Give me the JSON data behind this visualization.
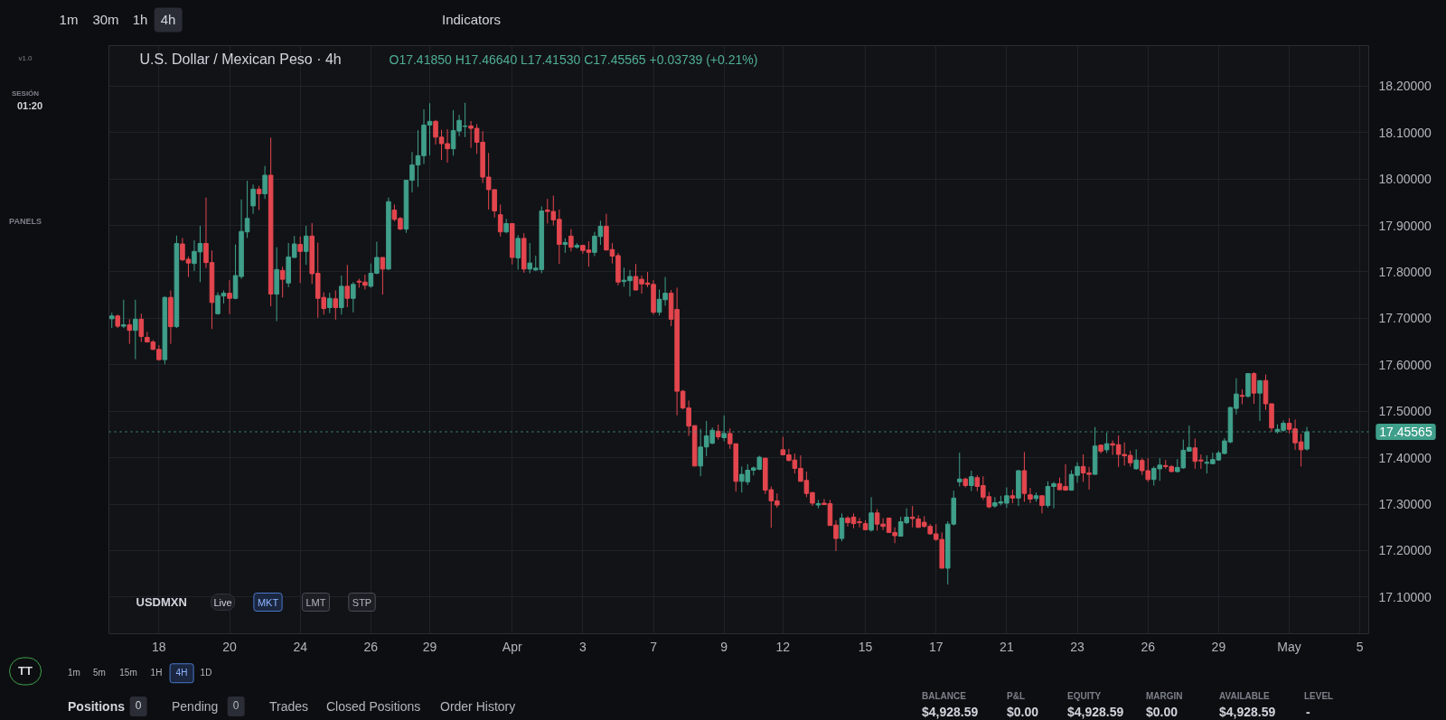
{
  "chart_data": {
    "type": "candlestick",
    "title": "U.S. Dollar / Mexican Peso · 4h",
    "subtitle": "O17.41850 H17.46640 L17.41530 C17.45565 +0.03739 (+0.21%)",
    "categories": [
      null,
      null,
      null,
      null,
      null,
      null,
      null,
      null,
      "18",
      null,
      null,
      null,
      null,
      null,
      null,
      null,
      null,
      null,
      null,
      null,
      "20",
      null,
      null,
      null,
      null,
      null,
      null,
      null,
      null,
      null,
      null,
      null,
      "24",
      null,
      null,
      null,
      null,
      null,
      null,
      null,
      null,
      null,
      null,
      null,
      "26",
      null,
      null,
      null,
      null,
      null,
      null,
      null,
      null,
      null,
      "29",
      null,
      null,
      null,
      null,
      null,
      null,
      null,
      null,
      null,
      null,
      null,
      null,
      null,
      "Apr",
      null,
      null,
      null,
      null,
      null,
      null,
      null,
      null,
      null,
      null,
      null,
      "3",
      null,
      null,
      null,
      null,
      null,
      null,
      null,
      null,
      null,
      null,
      null,
      "7",
      null,
      null,
      null,
      null,
      null,
      null,
      null,
      null,
      null,
      null,
      null,
      "9",
      null,
      null,
      null,
      null,
      null,
      null,
      null,
      null,
      null,
      "12",
      null,
      null,
      null,
      null,
      null,
      null,
      null,
      null,
      null,
      null,
      null,
      null,
      null,
      "15",
      null,
      null,
      null,
      null,
      null,
      null,
      null,
      null,
      null,
      null,
      null,
      "17",
      null,
      null,
      null,
      null,
      null,
      null,
      null,
      null,
      null,
      null,
      null,
      "21",
      null,
      null,
      null,
      null,
      null,
      null,
      null,
      null,
      null,
      null,
      null,
      "23",
      null,
      null,
      null,
      null,
      null,
      null,
      null,
      null,
      null,
      null,
      null,
      "26",
      null,
      null,
      null,
      null,
      null,
      null,
      null,
      null,
      null,
      null,
      null,
      "29",
      null,
      null,
      null,
      null,
      null,
      null,
      null,
      null,
      null,
      null,
      null,
      "May",
      null,
      null,
      null,
      null,
      null,
      null,
      null,
      null,
      null,
      null,
      null,
      "5",
      null
    ],
    "ohlc": [
      [
        17.699,
        17.712,
        17.679,
        17.705
      ],
      [
        17.705,
        17.708,
        17.679,
        17.683
      ],
      [
        17.683,
        17.74,
        17.679,
        17.686
      ],
      [
        17.686,
        17.698,
        17.645,
        17.674
      ],
      [
        17.674,
        17.74,
        17.612,
        17.698
      ],
      [
        17.698,
        17.71,
        17.649,
        17.661
      ],
      [
        17.659,
        17.671,
        17.648,
        17.649
      ],
      [
        17.649,
        17.653,
        17.632,
        17.633
      ],
      [
        17.633,
        17.642,
        17.609,
        17.611
      ],
      [
        17.611,
        17.747,
        17.601,
        17.745
      ],
      [
        17.745,
        17.76,
        17.645,
        17.682
      ],
      [
        17.682,
        17.878,
        17.679,
        17.861
      ],
      [
        17.86,
        17.873,
        17.823,
        17.826
      ],
      [
        17.827,
        17.833,
        17.789,
        17.819
      ],
      [
        17.818,
        17.868,
        17.802,
        17.844
      ],
      [
        17.843,
        17.899,
        17.778,
        17.861
      ],
      [
        17.861,
        17.96,
        17.808,
        17.82
      ],
      [
        17.82,
        17.846,
        17.677,
        17.734
      ],
      [
        17.71,
        17.756,
        17.708,
        17.749
      ],
      [
        17.748,
        17.76,
        17.732,
        17.754
      ],
      [
        17.754,
        17.782,
        17.709,
        17.743
      ],
      [
        17.743,
        17.859,
        17.741,
        17.792
      ],
      [
        17.79,
        17.956,
        17.785,
        17.887
      ],
      [
        17.886,
        17.996,
        17.873,
        17.915
      ],
      [
        17.942,
        17.988,
        17.925,
        17.978
      ],
      [
        17.978,
        17.985,
        17.933,
        17.968
      ],
      [
        17.968,
        18.028,
        17.957,
        18.008
      ],
      [
        18.008,
        18.089,
        17.726,
        17.752
      ],
      [
        17.752,
        17.853,
        17.694,
        17.805
      ],
      [
        17.803,
        17.811,
        17.745,
        17.784
      ],
      [
        17.776,
        17.862,
        17.767,
        17.832
      ],
      [
        17.831,
        17.877,
        17.83,
        17.86
      ],
      [
        17.859,
        17.876,
        17.776,
        17.844
      ],
      [
        17.844,
        17.899,
        17.815,
        17.877
      ],
      [
        17.877,
        17.905,
        17.774,
        17.796
      ],
      [
        17.797,
        17.863,
        17.701,
        17.743
      ],
      [
        17.745,
        17.756,
        17.708,
        17.721
      ],
      [
        17.723,
        17.755,
        17.711,
        17.743
      ],
      [
        17.742,
        17.76,
        17.697,
        17.723
      ],
      [
        17.723,
        17.792,
        17.708,
        17.769
      ],
      [
        17.769,
        17.815,
        17.724,
        17.743
      ],
      [
        17.743,
        17.778,
        17.713,
        17.773
      ],
      [
        17.78,
        17.785,
        17.766,
        17.778
      ],
      [
        17.778,
        17.794,
        17.762,
        17.771
      ],
      [
        17.769,
        17.818,
        17.766,
        17.797
      ],
      [
        17.797,
        17.865,
        17.795,
        17.831
      ],
      [
        17.831,
        17.831,
        17.751,
        17.806
      ],
      [
        17.806,
        17.96,
        17.804,
        17.951
      ],
      [
        17.933,
        17.945,
        17.909,
        17.913
      ],
      [
        17.915,
        17.918,
        17.89,
        17.892
      ],
      [
        17.892,
        17.997,
        17.884,
        17.997
      ],
      [
        17.997,
        18.058,
        17.971,
        18.03
      ],
      [
        18.03,
        18.105,
        17.983,
        18.05
      ],
      [
        18.05,
        18.15,
        18.032,
        18.116
      ],
      [
        18.116,
        18.163,
        18.051,
        18.124
      ],
      [
        18.124,
        18.127,
        18.074,
        18.09
      ],
      [
        18.09,
        18.106,
        18.041,
        18.076
      ],
      [
        18.076,
        18.107,
        18.035,
        18.065
      ],
      [
        18.065,
        18.148,
        18.05,
        18.104
      ],
      [
        18.103,
        18.138,
        18.092,
        18.126
      ],
      [
        18.113,
        18.164,
        18.09,
        18.114
      ],
      [
        18.114,
        18.125,
        18.067,
        18.109
      ],
      [
        18.109,
        18.118,
        18.054,
        18.079
      ],
      [
        18.079,
        18.103,
        17.991,
        18.004
      ],
      [
        18.004,
        18.056,
        17.934,
        17.977
      ],
      [
        17.977,
        17.977,
        17.917,
        17.931
      ],
      [
        17.923,
        17.945,
        17.876,
        17.886
      ],
      [
        17.886,
        17.914,
        17.883,
        17.904
      ],
      [
        17.904,
        17.904,
        17.816,
        17.831
      ],
      [
        17.83,
        17.879,
        17.805,
        17.872
      ],
      [
        17.872,
        17.883,
        17.798,
        17.806
      ],
      [
        17.806,
        17.862,
        17.797,
        17.819
      ],
      [
        17.804,
        17.835,
        17.802,
        17.808
      ],
      [
        17.805,
        17.941,
        17.797,
        17.931
      ],
      [
        17.933,
        17.957,
        17.904,
        17.93
      ],
      [
        17.93,
        17.964,
        17.9,
        17.912
      ],
      [
        17.913,
        17.934,
        17.817,
        17.859
      ],
      [
        17.859,
        17.872,
        17.841,
        17.863
      ],
      [
        17.877,
        17.892,
        17.844,
        17.853
      ],
      [
        17.853,
        17.862,
        17.85,
        17.857
      ],
      [
        17.857,
        17.857,
        17.839,
        17.846
      ],
      [
        17.847,
        17.866,
        17.811,
        17.842
      ],
      [
        17.842,
        17.886,
        17.834,
        17.877
      ],
      [
        17.876,
        17.91,
        17.858,
        17.898
      ],
      [
        17.898,
        17.925,
        17.846,
        17.847
      ],
      [
        17.848,
        17.862,
        17.818,
        17.834
      ],
      [
        17.835,
        17.841,
        17.771,
        17.778
      ],
      [
        17.779,
        17.809,
        17.768,
        17.782
      ],
      [
        17.781,
        17.804,
        17.747,
        17.79
      ],
      [
        17.79,
        17.817,
        17.76,
        17.761
      ],
      [
        17.784,
        17.792,
        17.753,
        17.774
      ],
      [
        17.776,
        17.8,
        17.767,
        17.773
      ],
      [
        17.773,
        17.782,
        17.708,
        17.713
      ],
      [
        17.713,
        17.762,
        17.706,
        17.741
      ],
      [
        17.74,
        17.789,
        17.727,
        17.754
      ],
      [
        17.754,
        17.761,
        17.683,
        17.698
      ],
      [
        17.719,
        17.766,
        17.491,
        17.543
      ],
      [
        17.543,
        17.546,
        17.504,
        17.507
      ],
      [
        17.507,
        17.523,
        17.447,
        17.468
      ],
      [
        17.469,
        17.469,
        17.382,
        17.382
      ],
      [
        17.382,
        17.462,
        17.36,
        17.423
      ],
      [
        17.423,
        17.479,
        17.403,
        17.447
      ],
      [
        17.431,
        17.465,
        17.429,
        17.459
      ],
      [
        17.457,
        17.471,
        17.439,
        17.445
      ],
      [
        17.443,
        17.491,
        17.435,
        17.452
      ],
      [
        17.452,
        17.463,
        17.419,
        17.43
      ],
      [
        17.43,
        17.43,
        17.327,
        17.349
      ],
      [
        17.349,
        17.381,
        17.325,
        17.364
      ],
      [
        17.348,
        17.386,
        17.341,
        17.373
      ],
      [
        17.373,
        17.381,
        17.362,
        17.378
      ],
      [
        17.375,
        17.404,
        17.373,
        17.401
      ],
      [
        17.399,
        17.399,
        17.322,
        17.33
      ],
      [
        17.331,
        17.338,
        17.249,
        17.307
      ],
      [
        17.307,
        17.323,
        17.292,
        17.298
      ],
      [
        17.417,
        17.445,
        17.406,
        17.406
      ],
      [
        17.406,
        17.419,
        17.392,
        17.394
      ],
      [
        17.395,
        17.409,
        17.366,
        17.377
      ],
      [
        17.377,
        17.405,
        17.349,
        17.349
      ],
      [
        17.351,
        17.37,
        17.315,
        17.323
      ],
      [
        17.325,
        17.325,
        17.296,
        17.302
      ],
      [
        17.298,
        17.309,
        17.291,
        17.301
      ],
      [
        17.302,
        17.311,
        17.298,
        17.299
      ],
      [
        17.301,
        17.309,
        17.254,
        17.254
      ],
      [
        17.255,
        17.265,
        17.199,
        17.226
      ],
      [
        17.226,
        17.28,
        17.22,
        17.27
      ],
      [
        17.27,
        17.274,
        17.252,
        17.26
      ],
      [
        17.272,
        17.28,
        17.248,
        17.258
      ],
      [
        17.262,
        17.27,
        17.25,
        17.26
      ],
      [
        17.258,
        17.265,
        17.244,
        17.245
      ],
      [
        17.244,
        17.315,
        17.241,
        17.281
      ],
      [
        17.281,
        17.289,
        17.243,
        17.257
      ],
      [
        17.257,
        17.27,
        17.244,
        17.252
      ],
      [
        17.27,
        17.27,
        17.239,
        17.239
      ],
      [
        17.239,
        17.25,
        17.216,
        17.232
      ],
      [
        17.231,
        17.273,
        17.23,
        17.262
      ],
      [
        17.26,
        17.291,
        17.257,
        17.272
      ],
      [
        17.272,
        17.296,
        17.25,
        17.269
      ],
      [
        17.268,
        17.276,
        17.249,
        17.25
      ],
      [
        17.261,
        17.274,
        17.249,
        17.252
      ],
      [
        17.252,
        17.257,
        17.234,
        17.236
      ],
      [
        17.236,
        17.257,
        17.221,
        17.224
      ],
      [
        17.224,
        17.239,
        17.162,
        17.162
      ],
      [
        17.162,
        17.263,
        17.127,
        17.257
      ],
      [
        17.257,
        17.329,
        17.254,
        17.313
      ],
      [
        17.348,
        17.411,
        17.338,
        17.354
      ],
      [
        17.354,
        17.357,
        17.336,
        17.34
      ],
      [
        17.34,
        17.372,
        17.328,
        17.359
      ],
      [
        17.357,
        17.362,
        17.328,
        17.338
      ],
      [
        17.34,
        17.36,
        17.309,
        17.315
      ],
      [
        17.316,
        17.326,
        17.291,
        17.294
      ],
      [
        17.296,
        17.315,
        17.292,
        17.303
      ],
      [
        17.302,
        17.318,
        17.297,
        17.305
      ],
      [
        17.302,
        17.336,
        17.292,
        17.318
      ],
      [
        17.318,
        17.331,
        17.302,
        17.313
      ],
      [
        17.313,
        17.373,
        17.296,
        17.372
      ],
      [
        17.372,
        17.412,
        17.305,
        17.323
      ],
      [
        17.32,
        17.335,
        17.302,
        17.311
      ],
      [
        17.312,
        17.325,
        17.305,
        17.318
      ],
      [
        17.318,
        17.318,
        17.28,
        17.297
      ],
      [
        17.297,
        17.349,
        17.292,
        17.338
      ],
      [
        17.338,
        17.348,
        17.291,
        17.344
      ],
      [
        17.344,
        17.357,
        17.33,
        17.331
      ],
      [
        17.338,
        17.386,
        17.33,
        17.33
      ],
      [
        17.33,
        17.373,
        17.329,
        17.364
      ],
      [
        17.362,
        17.39,
        17.346,
        17.381
      ],
      [
        17.381,
        17.407,
        17.348,
        17.367
      ],
      [
        17.367,
        17.38,
        17.331,
        17.364
      ],
      [
        17.364,
        17.466,
        17.364,
        17.425
      ],
      [
        17.427,
        17.428,
        17.409,
        17.414
      ],
      [
        17.417,
        17.454,
        17.41,
        17.43
      ],
      [
        17.43,
        17.437,
        17.406,
        17.427
      ],
      [
        17.428,
        17.448,
        17.38,
        17.407
      ],
      [
        17.407,
        17.433,
        17.383,
        17.404
      ],
      [
        17.405,
        17.415,
        17.381,
        17.389
      ],
      [
        17.376,
        17.418,
        17.374,
        17.395
      ],
      [
        17.394,
        17.399,
        17.363,
        17.372
      ],
      [
        17.372,
        17.399,
        17.348,
        17.353
      ],
      [
        17.353,
        17.381,
        17.34,
        17.377
      ],
      [
        17.376,
        17.399,
        17.35,
        17.384
      ],
      [
        17.383,
        17.395,
        17.376,
        17.381
      ],
      [
        17.381,
        17.384,
        17.369,
        17.37
      ],
      [
        17.37,
        17.397,
        17.368,
        17.379
      ],
      [
        17.378,
        17.439,
        17.376,
        17.416
      ],
      [
        17.414,
        17.469,
        17.413,
        17.422
      ],
      [
        17.421,
        17.441,
        17.376,
        17.392
      ],
      [
        17.395,
        17.407,
        17.376,
        17.393
      ],
      [
        17.388,
        17.405,
        17.366,
        17.39
      ],
      [
        17.387,
        17.411,
        17.386,
        17.396
      ],
      [
        17.395,
        17.415,
        17.394,
        17.41
      ],
      [
        17.409,
        17.442,
        17.407,
        17.436
      ],
      [
        17.434,
        17.51,
        17.431,
        17.508
      ],
      [
        17.506,
        17.571,
        17.493,
        17.537
      ],
      [
        17.534,
        17.547,
        17.515,
        17.532
      ],
      [
        17.532,
        17.582,
        17.529,
        17.581
      ],
      [
        17.581,
        17.584,
        17.516,
        17.539
      ],
      [
        17.539,
        17.566,
        17.479,
        17.566
      ],
      [
        17.566,
        17.579,
        17.503,
        17.516
      ],
      [
        17.516,
        17.516,
        17.456,
        17.464
      ],
      [
        17.456,
        17.472,
        17.452,
        17.461
      ],
      [
        17.459,
        17.48,
        17.456,
        17.474
      ],
      [
        17.474,
        17.485,
        17.452,
        17.461
      ],
      [
        17.462,
        17.482,
        17.417,
        17.432
      ],
      [
        17.434,
        17.451,
        17.381,
        17.417
      ],
      [
        17.4185,
        17.4664,
        17.4153,
        17.45565
      ],
      null,
      null,
      null,
      null,
      null,
      null,
      null,
      null,
      null,
      null
    ],
    "colors": [
      "#3f9f8a",
      "#e3464e",
      "#3f9f8a",
      "#e3464e",
      "#3f9f8a",
      "#e3464e",
      "#e3464e",
      "#e3464e",
      "#e3464e",
      "#3f9f8a",
      "#e3464e",
      "#3f9f8a",
      "#e3464e",
      "#e3464e",
      "#3f9f8a",
      "#3f9f8a",
      "#e3464e",
      "#e3464e",
      "#3f9f8a",
      "#3f9f8a",
      "#e3464e",
      "#3f9f8a",
      "#3f9f8a",
      "#3f9f8a",
      "#3f9f8a",
      "#e3464e",
      "#3f9f8a",
      "#e3464e",
      "#3f9f8a",
      "#e3464e",
      "#3f9f8a",
      "#3f9f8a",
      "#e3464e",
      "#3f9f8a",
      "#e3464e",
      "#e3464e",
      "#e3464e",
      "#3f9f8a",
      "#e3464e",
      "#3f9f8a",
      "#e3464e",
      "#3f9f8a",
      "#e3464e",
      "#e3464e",
      "#3f9f8a",
      "#3f9f8a",
      "#e3464e",
      "#3f9f8a",
      "#e3464e",
      "#e3464e",
      "#3f9f8a",
      "#3f9f8a",
      "#3f9f8a",
      "#3f9f8a",
      "#3f9f8a",
      "#e3464e",
      "#e3464e",
      "#e3464e",
      "#3f9f8a",
      "#3f9f8a",
      "#3f9f8a",
      "#e3464e",
      "#e3464e",
      "#e3464e",
      "#e3464e",
      "#e3464e",
      "#e3464e",
      "#3f9f8a",
      "#e3464e",
      "#3f9f8a",
      "#e3464e",
      "#3f9f8a",
      "#3f9f8a",
      "#3f9f8a",
      "#e3464e",
      "#e3464e",
      "#e3464e",
      "#3f9f8a",
      "#e3464e",
      "#3f9f8a",
      "#e3464e",
      "#e3464e",
      "#3f9f8a",
      "#3f9f8a",
      "#e3464e",
      "#e3464e",
      "#e3464e",
      "#3f9f8a",
      "#3f9f8a",
      "#e3464e",
      "#e3464e",
      "#e3464e",
      "#e3464e",
      "#3f9f8a",
      "#3f9f8a",
      "#e3464e",
      "#e3464e",
      "#e3464e",
      "#e3464e",
      "#e3464e",
      "#3f9f8a",
      "#3f9f8a",
      "#3f9f8a",
      "#e3464e",
      "#3f9f8a",
      "#e3464e",
      "#e3464e",
      "#3f9f8a",
      "#3f9f8a",
      "#3f9f8a",
      "#3f9f8a",
      "#e3464e",
      "#e3464e",
      "#e3464e",
      "#e3464e",
      "#e3464e",
      "#e3464e",
      "#e3464e",
      "#e3464e",
      "#e3464e",
      "#3f9f8a",
      "#e3464e",
      "#e3464e",
      "#e3464e",
      "#3f9f8a",
      "#e3464e",
      "#e3464e",
      "#e3464e",
      "#e3464e",
      "#3f9f8a",
      "#e3464e",
      "#e3464e",
      "#e3464e",
      "#e3464e",
      "#3f9f8a",
      "#3f9f8a",
      "#e3464e",
      "#e3464e",
      "#e3464e",
      "#e3464e",
      "#e3464e",
      "#e3464e",
      "#3f9f8a",
      "#3f9f8a",
      "#3f9f8a",
      "#e3464e",
      "#3f9f8a",
      "#e3464e",
      "#e3464e",
      "#e3464e",
      "#3f9f8a",
      "#3f9f8a",
      "#3f9f8a",
      "#e3464e",
      "#3f9f8a",
      "#e3464e",
      "#e3464e",
      "#3f9f8a",
      "#e3464e",
      "#3f9f8a",
      "#3f9f8a",
      "#e3464e",
      "#e3464e",
      "#3f9f8a",
      "#3f9f8a",
      "#e3464e",
      "#e3464e",
      "#3f9f8a",
      "#e3464e",
      "#3f9f8a",
      "#e3464e",
      "#e3464e",
      "#e3464e",
      "#e3464e",
      "#3f9f8a",
      "#e3464e",
      "#e3464e",
      "#3f9f8a",
      "#3f9f8a",
      "#e3464e",
      "#e3464e",
      "#3f9f8a",
      "#3f9f8a",
      "#3f9f8a",
      "#e3464e",
      "#e3464e",
      "#3f9f8a",
      "#3f9f8a",
      "#3f9f8a",
      "#3f9f8a",
      "#3f9f8a",
      "#3f9f8a",
      "#e3464e",
      "#3f9f8a",
      "#e3464e",
      "#3f9f8a",
      "#e3464e",
      "#e3464e",
      "#3f9f8a",
      "#3f9f8a",
      "#e3464e",
      "#e3464e",
      "#e3464e",
      "#3f9f8a",
      null,
      null,
      null,
      null,
      null,
      null,
      null,
      null,
      null,
      null
    ],
    "ylim": [
      17.021,
      18.287
    ],
    "yticks": [
      {
        "value": 17.1,
        "label": "17.10000"
      },
      {
        "value": 17.2,
        "label": "17.20000"
      },
      {
        "value": 17.3,
        "label": "17.30000"
      },
      {
        "value": 17.4,
        "label": "17.40000"
      },
      {
        "value": 17.5,
        "label": "17.50000"
      },
      {
        "value": 17.6,
        "label": "17.60000"
      },
      {
        "value": 17.7,
        "label": "17.70000"
      },
      {
        "value": 17.8,
        "label": "17.80000"
      },
      {
        "value": 17.9,
        "label": "17.90000"
      },
      {
        "value": 18.0,
        "label": "18.00000"
      },
      {
        "value": 18.1,
        "label": "18.10000"
      },
      {
        "value": 18.2,
        "label": "18.20000"
      }
    ],
    "grid": true,
    "ref_lines": [
      {
        "axis": "y",
        "value": 17.45565,
        "label": "17.45565",
        "color": "#3f9f8a",
        "line_style": "dotted"
      }
    ],
    "annotations": [
      "1m",
      "30m",
      "1h",
      "4h",
      "Indicators",
      "v1.0",
      "SESIÓN",
      "01:20",
      "PANELS",
      "TT",
      "USDMXN",
      "Live",
      "MKT",
      "LMT",
      "STP",
      "1m",
      "5m",
      "15m",
      "1H",
      "4H",
      "1D",
      "Positions",
      "0",
      "Pending",
      "0",
      "Trades",
      "Closed Positions",
      "Order History",
      "BALANCE",
      "$4,928.59",
      "P&L",
      "$0.00",
      "EQUITY",
      "$4,928.59",
      "MARGIN",
      "$0.00",
      "AVAILABLE",
      "$4,928.59",
      "LEVEL",
      "-"
    ]
  }
}
